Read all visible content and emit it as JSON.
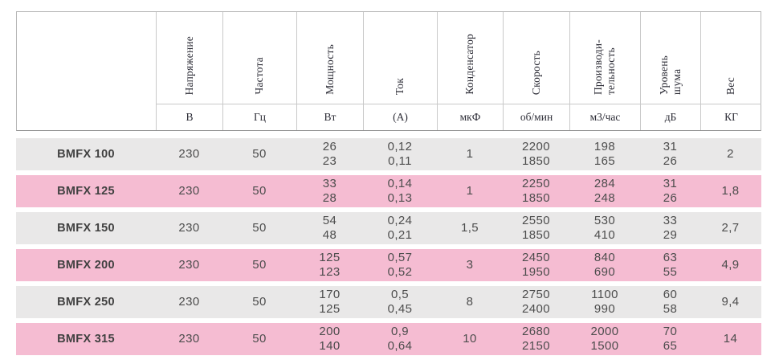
{
  "table": {
    "columns": [
      {
        "key": "model",
        "label": "",
        "unit": ""
      },
      {
        "key": "voltage",
        "label": "Напряжение",
        "unit": "В"
      },
      {
        "key": "frequency",
        "label": "Частота",
        "unit": "Гц"
      },
      {
        "key": "power",
        "label": "Мощность",
        "unit": "Вт"
      },
      {
        "key": "current",
        "label": "Ток",
        "unit": "(А)"
      },
      {
        "key": "capacitor",
        "label": "Конденсатор",
        "unit": "мкФ"
      },
      {
        "key": "speed",
        "label": "Скорость",
        "unit": "об/мин"
      },
      {
        "key": "capacity",
        "label": "Производи-\nтельность",
        "unit": "м3/час"
      },
      {
        "key": "noise",
        "label": "Уровень\nшума",
        "unit": "дБ"
      },
      {
        "key": "weight",
        "label": "Вес",
        "unit": "КГ"
      }
    ],
    "rows": [
      {
        "name": "BMFX 100",
        "values": [
          "230",
          "50",
          "26\n23",
          "0,12\n0,11",
          "1",
          "2200\n1850",
          "198\n165",
          "31\n26",
          "2"
        ]
      },
      {
        "name": "BMFX 125",
        "values": [
          "230",
          "50",
          "33\n28",
          "0,14\n0,13",
          "1",
          "2250\n1850",
          "284\n248",
          "31\n26",
          "1,8"
        ]
      },
      {
        "name": "BMFX 150",
        "values": [
          "230",
          "50",
          "54\n48",
          "0,24\n0,21",
          "1,5",
          "2550\n1850",
          "530\n410",
          "33\n29",
          "2,7"
        ]
      },
      {
        "name": "BMFX 200",
        "values": [
          "230",
          "50",
          "125\n123",
          "0,57\n0,52",
          "3",
          "2450\n1950",
          "840\n690",
          "63\n55",
          "4,9"
        ]
      },
      {
        "name": "BMFX 250",
        "values": [
          "230",
          "50",
          "170\n125",
          "0,5\n0,45",
          "8",
          "2750\n2400",
          "1100\n990",
          "60\n58",
          "9,4"
        ]
      },
      {
        "name": "BMFX 315",
        "values": [
          "230",
          "50",
          "200\n140",
          "0,9\n0,64",
          "10",
          "2680\n2150",
          "2000\n1500",
          "70\n65",
          "14"
        ]
      }
    ]
  },
  "colors": {
    "row_gray": "#e9e8e8",
    "row_pink": "#f5bcd2",
    "header_text": "#2c2c36",
    "data_text": "#4d4d4d",
    "border": "#c9c9c9"
  }
}
